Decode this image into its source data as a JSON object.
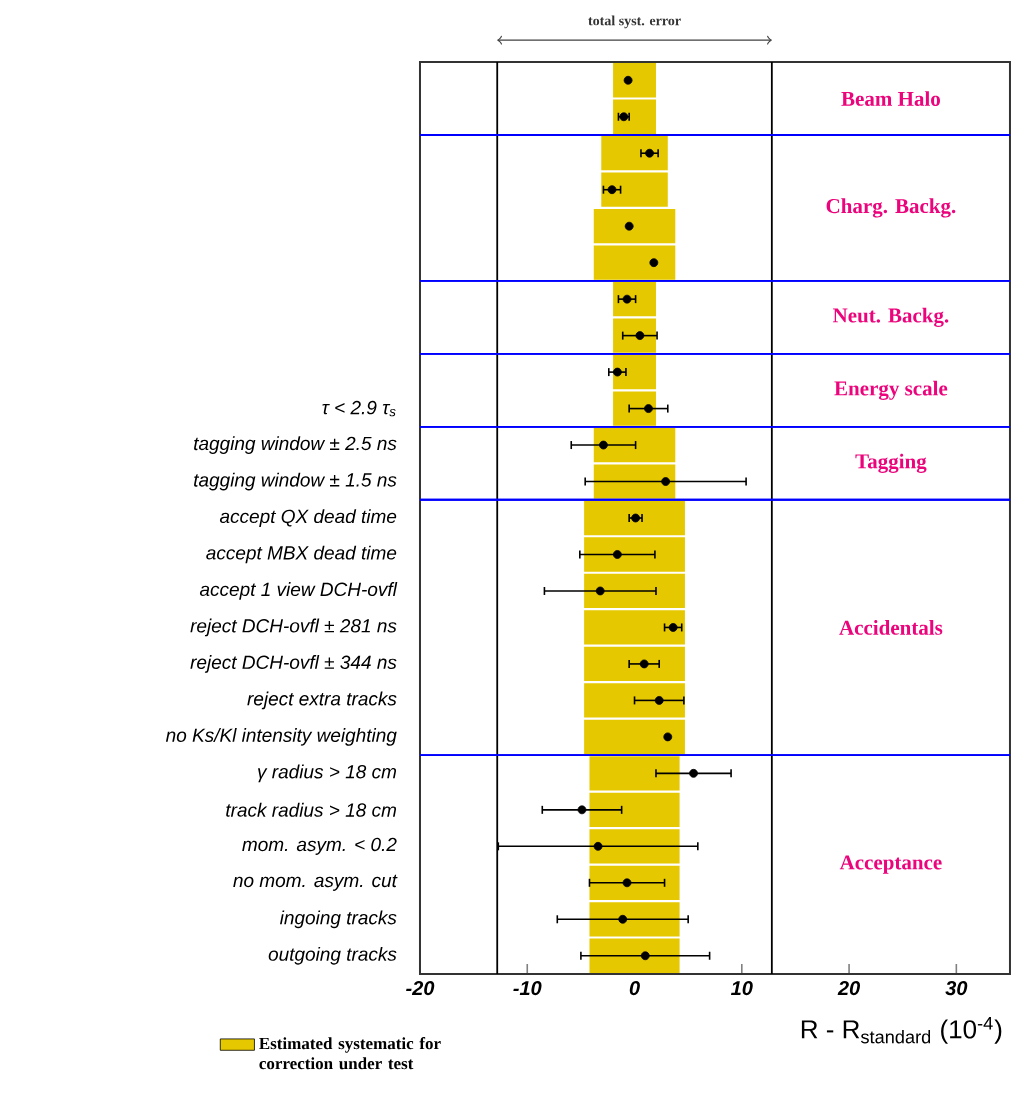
{
  "chart_data": {
    "type": "scatter",
    "orientation": "horizontal",
    "xlabel": "R - R$_{standard}$ (10$^{-4}$)",
    "categories": [
      null,
      null,
      null,
      null,
      null,
      null,
      null,
      null,
      null,
      "τ < 2.9 τ$_{s}$",
      "tagging window ± 2.5 ns",
      "tagging window ± 1.5 ns",
      "accept QX dead time",
      "accept MBX dead time",
      "accept 1 view DCH-ovfl",
      "reject DCH-ovfl ± 281 ns",
      "reject DCH-ovfl ± 344 ns",
      "reject extra tracks",
      "no Ks/Kl intensity weighting",
      "γ radius > 18 cm",
      "track radius > 18 cm",
      "mom. asym. < 0.2",
      "no mom. asym. cut",
      "ingoing tracks",
      "outgoing tracks"
    ],
    "series": [
      {
        "type": "bar",
        "name": "Estimated systematic for correction under test",
        "color": "#e6c800",
        "base": [
          -2,
          -2,
          -3.1,
          -3.1,
          -3.8,
          -3.8,
          -2,
          -2,
          -2,
          -2,
          -3.8,
          -3.8,
          -4.7,
          -4.7,
          -4.7,
          -4.7,
          -4.7,
          -4.7,
          -4.7,
          -4.2,
          -4.2,
          -4.2,
          -4.2,
          -4.2,
          -4.2
        ],
        "values": [
          4,
          4,
          6.2,
          6.2,
          7.6,
          7.6,
          4,
          4,
          4,
          4,
          7.6,
          7.6,
          9.4,
          9.4,
          9.4,
          9.4,
          9.4,
          9.4,
          9.4,
          8.4,
          8.4,
          8.4,
          8.4,
          8.4,
          8.4
        ]
      },
      {
        "color": "#000000",
        "values": [
          -0.6,
          -1.0,
          1.4,
          -2.1,
          -0.5,
          1.8,
          -0.7,
          0.5,
          -1.6,
          1.3,
          -2.9,
          2.9,
          0.1,
          -1.6,
          -3.2,
          3.6,
          0.9,
          2.3,
          3.1,
          5.5,
          -4.9,
          -3.4,
          -0.7,
          -1.1,
          1.0
        ],
        "errors": [
          null,
          0.5,
          0.8,
          0.8,
          null,
          null,
          0.8,
          1.6,
          0.8,
          1.8,
          3.0,
          7.5,
          0.6,
          3.5,
          5.2,
          0.8,
          1.4,
          2.3,
          null,
          3.5,
          3.7,
          9.3,
          3.5,
          6.1,
          6.0
        ]
      }
    ],
    "xlim": [
      -20,
      35
    ],
    "xticks": [
      -20,
      -10,
      0,
      10,
      20,
      30
    ],
    "ref_lines": [
      {
        "axis": "x",
        "value": -12.8
      },
      {
        "axis": "x",
        "value": 12.8
      }
    ],
    "annotations": [
      "total syst. error",
      "Beam Halo",
      "Charg. Backg.",
      "Neut. Backg.",
      "Energy scale",
      "Tagging",
      "Accidentals",
      "Acceptance"
    ],
    "legend": "bottom left"
  }
}
